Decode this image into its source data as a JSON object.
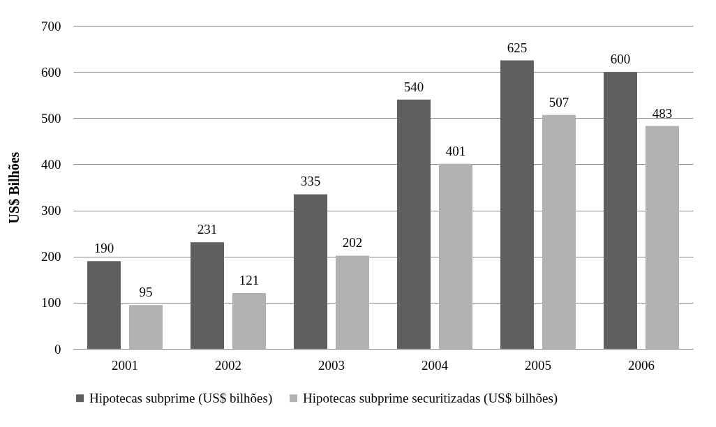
{
  "chart_data": {
    "type": "bar",
    "ylabel": "US$ Bilhões",
    "categories": [
      "2001",
      "2002",
      "2003",
      "2004",
      "2005",
      "2006"
    ],
    "series": [
      {
        "name": "Hipotecas subprime (US$ bilhões)",
        "color": "#5f5f5f",
        "values": [
          190,
          231,
          335,
          540,
          625,
          600
        ]
      },
      {
        "name": "Hipotecas subprime securitizadas (US$ bilhões)",
        "color": "#b2b2b2",
        "values": [
          95,
          121,
          202,
          401,
          507,
          483
        ]
      }
    ],
    "ylim": [
      0,
      700
    ],
    "yticks": [
      0,
      100,
      200,
      300,
      400,
      500,
      600,
      700
    ],
    "grid": "y",
    "legend": "bottom",
    "data_labels": true
  }
}
